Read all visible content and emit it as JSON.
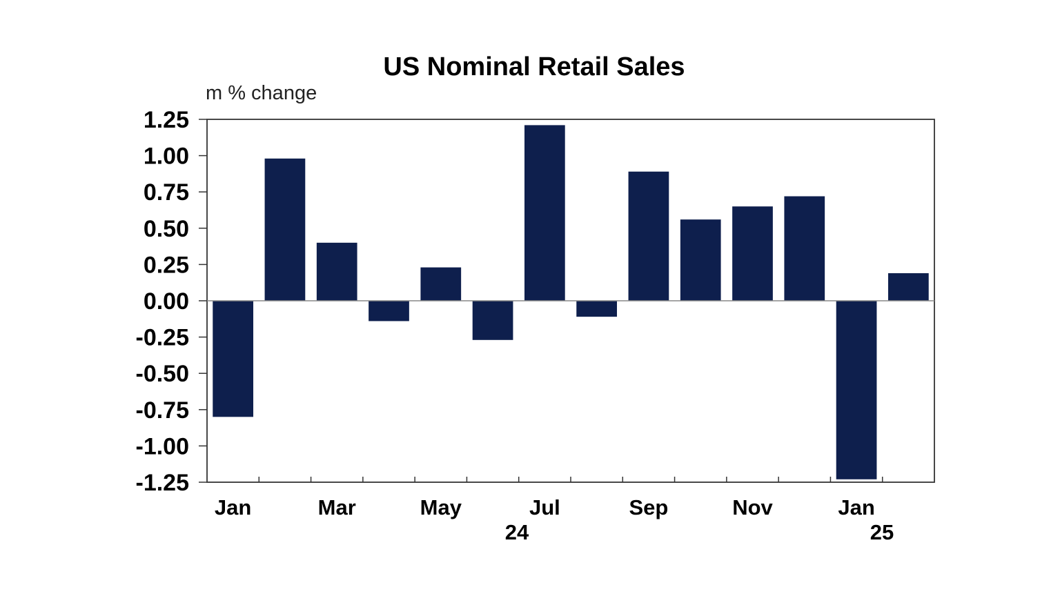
{
  "chart_data": {
    "type": "bar",
    "title": "US Nominal Retail Sales",
    "unit_label": "m % change",
    "xlabel": "",
    "ylabel": "",
    "categories": [
      "Jan 24",
      "Feb 24",
      "Mar 24",
      "Apr 24",
      "May 24",
      "Jun 24",
      "Jul 24",
      "Aug 24",
      "Sep 24",
      "Oct 24",
      "Nov 24",
      "Dec 24",
      "Jan 25",
      "Feb 25"
    ],
    "values": [
      -0.8,
      0.98,
      0.4,
      -0.14,
      0.23,
      -0.27,
      1.21,
      -0.11,
      0.89,
      0.56,
      0.65,
      0.72,
      -1.23,
      0.19
    ],
    "ylim": [
      -1.25,
      1.25
    ],
    "yticks": [
      "1.25",
      "1.00",
      "0.75",
      "0.50",
      "0.25",
      "0.00",
      "-0.25",
      "-0.50",
      "-0.75",
      "-1.00",
      "-1.25"
    ],
    "xtick_labels": [
      {
        "index": 0,
        "label": "Jan"
      },
      {
        "index": 2,
        "label": "Mar"
      },
      {
        "index": 4,
        "label": "May"
      },
      {
        "index": 6,
        "label": "Jul"
      },
      {
        "index": 8,
        "label": "Sep"
      },
      {
        "index": 10,
        "label": "Nov"
      },
      {
        "index": 12,
        "label": "Jan"
      }
    ],
    "year_labels": [
      {
        "label": "24"
      },
      {
        "label": "25"
      }
    ],
    "bar_color": "#0e1f4d",
    "grid": false,
    "legend": "none"
  }
}
